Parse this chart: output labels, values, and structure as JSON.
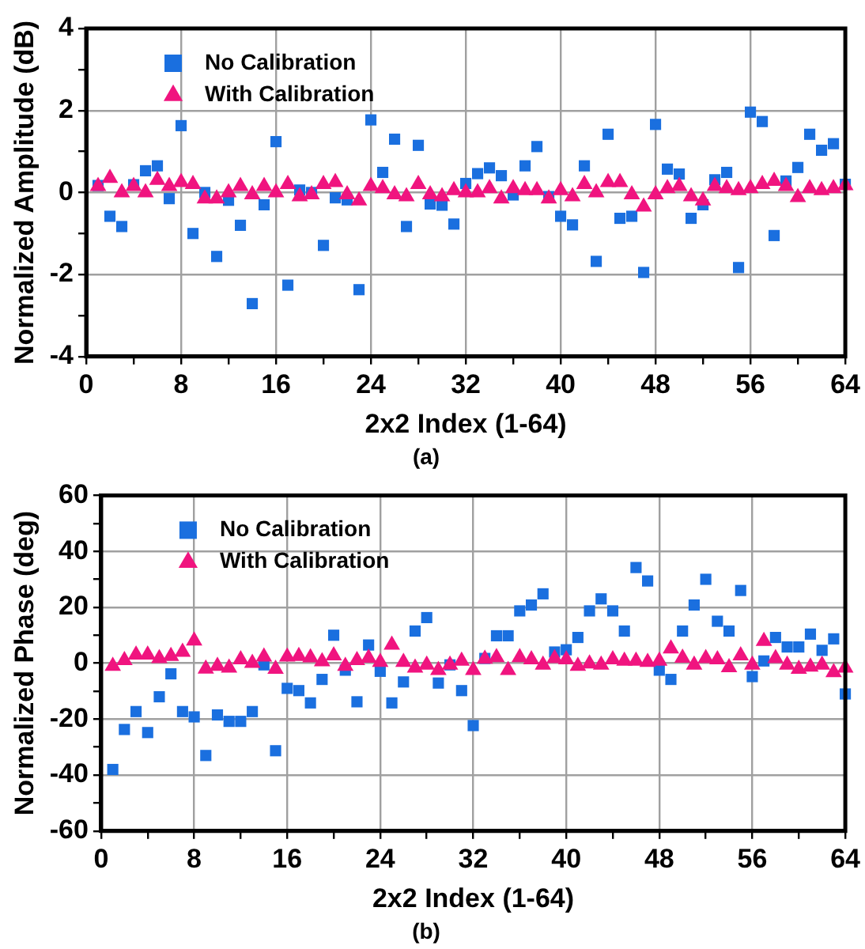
{
  "chart_data": [
    {
      "type": "scatter",
      "title": "(a)",
      "xlabel": "2x2 Index (1-64)",
      "ylabel": "Normalized Amplitude (dB)",
      "x": [
        1,
        2,
        3,
        4,
        5,
        6,
        7,
        8,
        9,
        10,
        11,
        12,
        13,
        14,
        15,
        16,
        17,
        18,
        19,
        20,
        21,
        22,
        23,
        24,
        25,
        26,
        27,
        28,
        29,
        30,
        31,
        32,
        33,
        34,
        35,
        36,
        37,
        38,
        39,
        40,
        41,
        42,
        43,
        44,
        45,
        46,
        47,
        48,
        49,
        50,
        51,
        52,
        53,
        54,
        55,
        56,
        57,
        58,
        59,
        60,
        61,
        62,
        63,
        64
      ],
      "series": [
        {
          "name": "No Calibration",
          "color": "#1a6fdf",
          "marker": "square",
          "values": [
            0.17,
            -0.58,
            -0.83,
            0.19,
            0.53,
            0.65,
            -0.15,
            1.63,
            -1.0,
            0.0,
            -1.56,
            -0.19,
            -0.8,
            -2.71,
            -0.3,
            1.24,
            -2.26,
            0.06,
            0.0,
            -1.29,
            -0.13,
            -0.18,
            -2.37,
            1.77,
            0.49,
            1.3,
            -0.83,
            1.15,
            -0.28,
            -0.31,
            -0.77,
            0.22,
            0.46,
            0.6,
            0.41,
            -0.06,
            0.65,
            1.12,
            -0.1,
            -0.58,
            -0.79,
            0.65,
            -1.68,
            1.42,
            -0.63,
            -0.58,
            -1.95,
            1.66,
            0.57,
            0.45,
            -0.63,
            -0.3,
            0.31,
            0.49,
            -1.83,
            1.96,
            1.73,
            -1.05,
            0.28,
            0.61,
            1.42,
            1.03,
            1.19,
            0.2
          ]
        },
        {
          "name": "With Calibration",
          "color": "#f0147f",
          "marker": "triangle",
          "values": [
            0.15,
            0.35,
            0.0,
            0.15,
            0.0,
            0.3,
            0.15,
            0.25,
            0.2,
            -0.15,
            -0.15,
            0.0,
            0.15,
            -0.05,
            0.15,
            0.0,
            0.2,
            -0.1,
            -0.05,
            0.2,
            0.25,
            -0.05,
            -0.2,
            0.15,
            0.1,
            -0.05,
            -0.1,
            0.2,
            -0.05,
            -0.1,
            0.05,
            0.0,
            0.0,
            0.1,
            -0.15,
            0.1,
            0.05,
            0.05,
            -0.15,
            0.05,
            -0.1,
            0.2,
            0.0,
            0.25,
            0.25,
            -0.05,
            -0.35,
            -0.05,
            0.1,
            0.15,
            -0.1,
            -0.2,
            0.15,
            0.1,
            0.05,
            0.1,
            0.2,
            0.28,
            0.15,
            -0.12,
            0.1,
            0.05,
            0.1,
            0.17
          ]
        }
      ],
      "xlim": [
        0,
        64
      ],
      "xticks": [
        0,
        {
          "value": 4,
          "label": null
        },
        8,
        {
          "value": 12,
          "label": null
        },
        16,
        {
          "value": 20,
          "label": null
        },
        24,
        {
          "value": 28,
          "label": null
        },
        32,
        {
          "value": 36,
          "label": null
        },
        40,
        {
          "value": 44,
          "label": null
        },
        48,
        {
          "value": 52,
          "label": null
        },
        56,
        {
          "value": 60,
          "label": null
        },
        64
      ],
      "ylim": [
        -4,
        4
      ],
      "yticks": [
        -4,
        {
          "value": -3,
          "label": null
        },
        -2,
        {
          "value": -1,
          "label": null
        },
        0,
        {
          "value": 1,
          "label": null
        },
        2,
        {
          "value": 3,
          "label": null
        },
        4
      ],
      "grid": true,
      "legend": "top left"
    },
    {
      "type": "scatter",
      "title": "(b)",
      "xlabel": "2x2 Index (1-64)",
      "ylabel": "Normalized Phase (deg)",
      "x": [
        1,
        2,
        3,
        4,
        5,
        6,
        7,
        8,
        9,
        10,
        11,
        12,
        13,
        14,
        15,
        16,
        17,
        18,
        19,
        20,
        21,
        22,
        23,
        24,
        25,
        26,
        27,
        28,
        29,
        30,
        31,
        32,
        33,
        34,
        35,
        36,
        37,
        38,
        39,
        40,
        41,
        42,
        43,
        44,
        45,
        46,
        47,
        48,
        49,
        50,
        51,
        52,
        53,
        54,
        55,
        56,
        57,
        58,
        59,
        60,
        61,
        62,
        63,
        64
      ],
      "series": [
        {
          "name": "No Calibration",
          "color": "#1a6fdf",
          "marker": "square",
          "values": [
            -38,
            -23.7,
            -17.3,
            -24.8,
            -12,
            -3.8,
            -17.3,
            -19.2,
            -33,
            -18.5,
            -20.8,
            -20.8,
            -17.3,
            -0.6,
            -31.3,
            -9,
            -9.8,
            -14.2,
            -5.8,
            10,
            -2.5,
            -13.8,
            6.5,
            -2.9,
            -14.2,
            -6.7,
            11.5,
            16.3,
            -7.1,
            -0.6,
            -9.8,
            -22.3,
            1.7,
            9.8,
            9.8,
            18.7,
            20.8,
            24.8,
            4,
            4.8,
            9.2,
            18.7,
            23,
            18.7,
            11.5,
            34.2,
            29.4,
            -2.5,
            -5.8,
            11.5,
            20.8,
            30,
            15,
            11.5,
            26,
            -4.8,
            0.8,
            9.2,
            5.8,
            5.8,
            10.4,
            4.6,
            8.7,
            -11
          ]
        },
        {
          "name": "With Calibration",
          "color": "#f0147f",
          "marker": "triangle",
          "values": [
            -1,
            1,
            3,
            3,
            1.7,
            2.5,
            4,
            8,
            -2,
            -1,
            -1.7,
            1.3,
            0,
            2.3,
            -2.1,
            2.3,
            2.5,
            2,
            0.6,
            2.7,
            -1,
            1,
            1.9,
            0.4,
            6.5,
            0.4,
            -1.7,
            -0.6,
            -2.5,
            -0.6,
            0.8,
            -2.5,
            1.5,
            2.1,
            -2.5,
            2.1,
            1.3,
            -0.6,
            1.7,
            1.3,
            -1,
            -0.2,
            -0.6,
            1.3,
            0.8,
            0.8,
            0.4,
            0.8,
            5.2,
            1.9,
            -0.6,
            1.7,
            1.3,
            -1.5,
            2.7,
            -0.6,
            7.9,
            1.7,
            -0.6,
            -2.1,
            -1.3,
            -0.6,
            -3.3,
            -1.7
          ]
        }
      ],
      "xlim": [
        0,
        64
      ],
      "xticks": [
        0,
        {
          "value": 4,
          "label": null
        },
        8,
        {
          "value": 12,
          "label": null
        },
        16,
        {
          "value": 20,
          "label": null
        },
        24,
        {
          "value": 28,
          "label": null
        },
        32,
        {
          "value": 36,
          "label": null
        },
        40,
        {
          "value": 44,
          "label": null
        },
        48,
        {
          "value": 52,
          "label": null
        },
        56,
        {
          "value": 60,
          "label": null
        },
        64
      ],
      "ylim": [
        -60,
        60
      ],
      "yticks": [
        -60,
        {
          "value": -50,
          "label": null
        },
        -40,
        {
          "value": -30,
          "label": null
        },
        -20,
        {
          "value": -10,
          "label": null
        },
        0,
        {
          "value": 10,
          "label": null
        },
        20,
        {
          "value": 30,
          "label": null
        },
        40,
        {
          "value": 50,
          "label": null
        },
        60
      ],
      "grid": true,
      "legend": "top left"
    }
  ]
}
